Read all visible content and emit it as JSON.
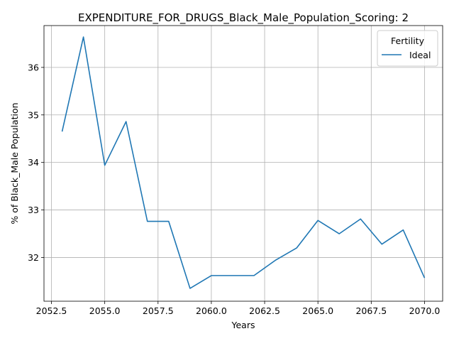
{
  "chart_data": {
    "type": "line",
    "title": "EXPENDITURE_FOR_DRUGS_Black_Male_Population_Scoring: 2",
    "xlabel": "Years",
    "ylabel": "% of Black_Male Population",
    "xlim": [
      2052.15,
      2070.85
    ],
    "ylim": [
      31.08,
      36.88
    ],
    "xticks": [
      2052.5,
      2055.0,
      2057.5,
      2060.0,
      2062.5,
      2065.0,
      2067.5,
      2070.0
    ],
    "xtick_labels": [
      "2052.5",
      "2055.0",
      "2057.5",
      "2060.0",
      "2062.5",
      "2065.0",
      "2067.5",
      "2070.0"
    ],
    "yticks": [
      32,
      33,
      34,
      35,
      36
    ],
    "ytick_labels": [
      "32",
      "33",
      "34",
      "35",
      "36"
    ],
    "grid": true,
    "legend": {
      "title": "Fertility",
      "position": "top-right"
    },
    "series": [
      {
        "name": "Ideal",
        "color": "#1f77b4",
        "x": [
          2053,
          2054,
          2055,
          2056,
          2057,
          2058,
          2059,
          2060,
          2061,
          2062,
          2063,
          2064,
          2065,
          2066,
          2067,
          2068,
          2069,
          2070
        ],
        "y": [
          34.65,
          36.64,
          33.94,
          34.86,
          32.76,
          32.76,
          31.35,
          31.62,
          31.62,
          31.62,
          31.94,
          32.2,
          32.78,
          32.5,
          32.81,
          32.28,
          32.58,
          31.57
        ]
      }
    ]
  }
}
